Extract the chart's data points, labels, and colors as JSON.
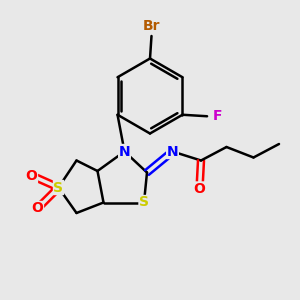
{
  "bg_color": "#e8e8e8",
  "bond_color": "#000000",
  "atom_colors": {
    "Br": "#b35a00",
    "F": "#cc00cc",
    "N": "#0000ff",
    "S": "#cccc00",
    "O": "#ff0000",
    "C": "#000000"
  },
  "bond_width": 1.8,
  "font_size_atoms": 10
}
